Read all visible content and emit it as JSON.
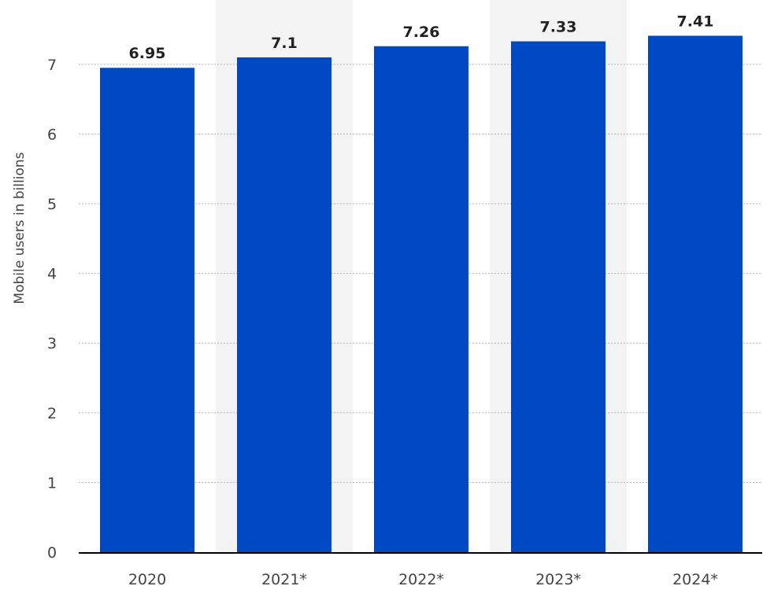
{
  "chart_data": {
    "type": "bar",
    "categories": [
      "2020",
      "2021*",
      "2022*",
      "2023*",
      "2024*"
    ],
    "values": [
      6.95,
      7.1,
      7.26,
      7.33,
      7.41
    ],
    "data_labels": [
      "6.95",
      "7.1",
      "7.26",
      "7.33",
      "7.41"
    ],
    "ylabel": "Mobile users in billions",
    "ylim": [
      0,
      7.4
    ],
    "yticks": [
      0,
      1,
      2,
      3,
      4,
      5,
      6,
      7
    ],
    "grid": true,
    "alternating_column_shading": true,
    "legend": "none"
  },
  "colors": {
    "bar": "#0049c4",
    "band": "#f3f3f3",
    "grid": "#b5b5b5",
    "axis": "#000000",
    "tick_label": "#444444",
    "data_label": "#222222"
  }
}
